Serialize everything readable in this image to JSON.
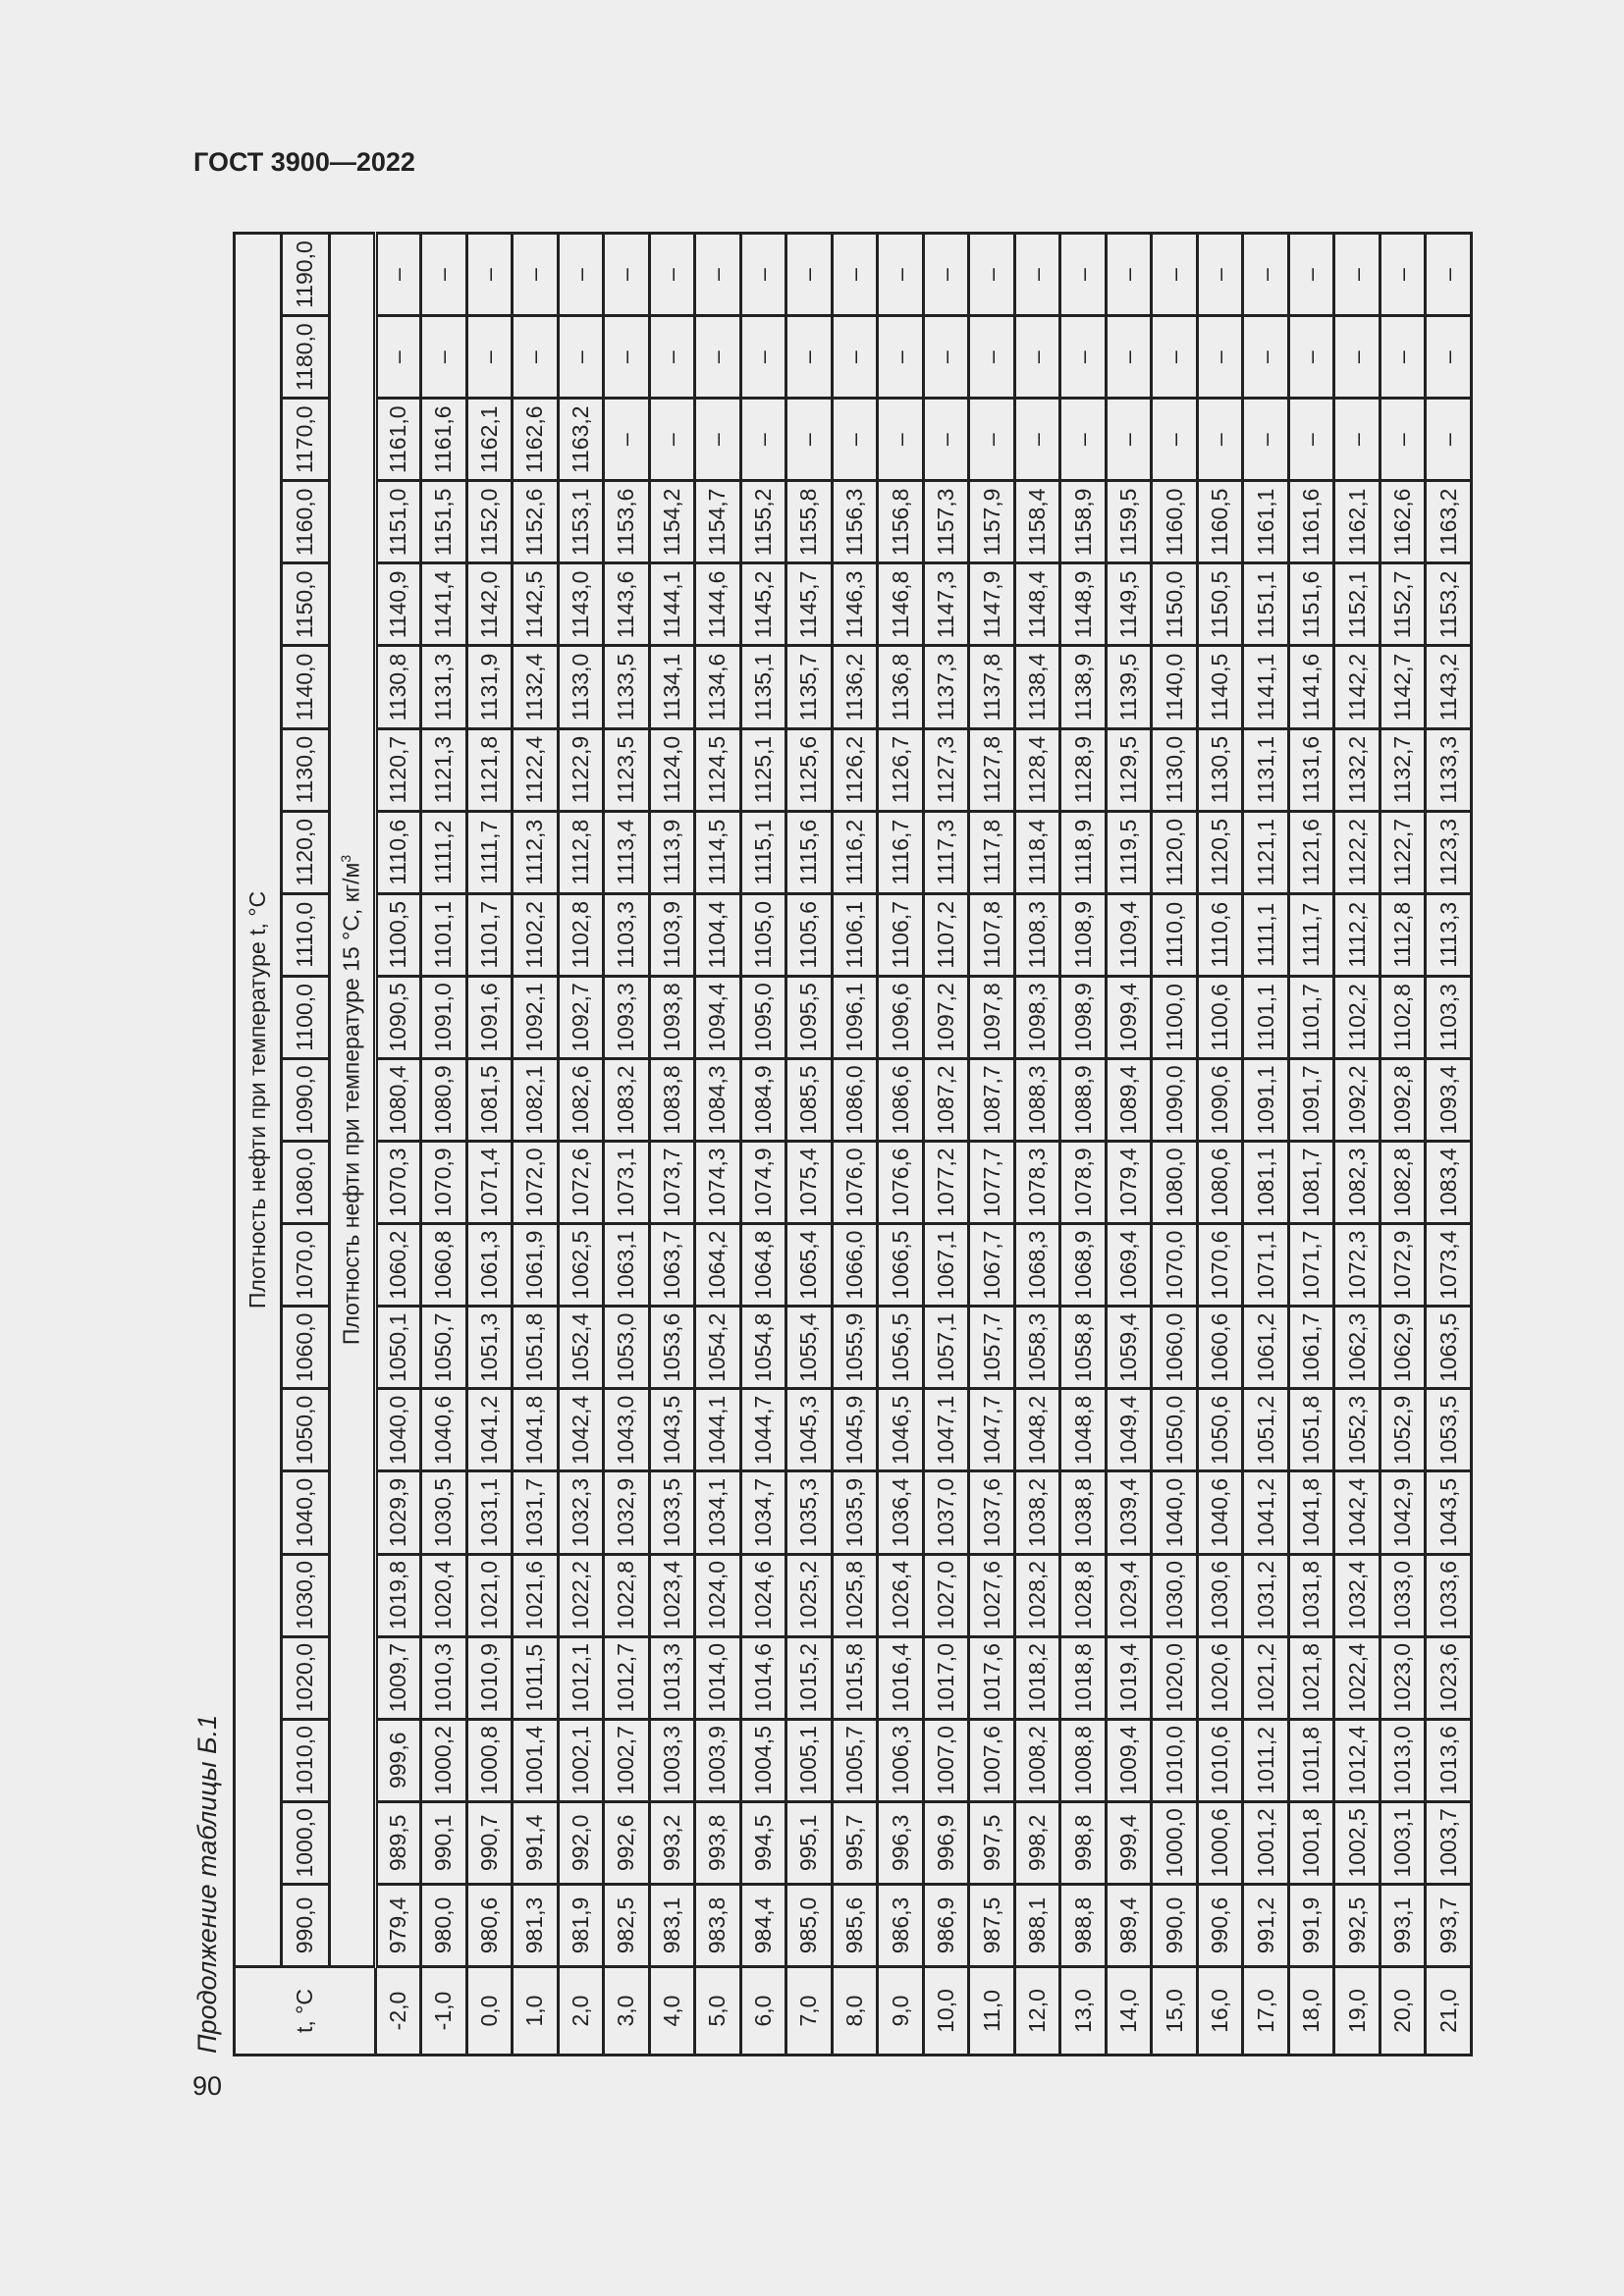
{
  "header": {
    "doc_title": "ГОСТ 3900—2022",
    "caption": "Продолжение таблицы Б.1",
    "page_number": "90"
  },
  "table": {
    "t_header": "t, °C",
    "group_header": "Плотность нефти при температуре t, °C",
    "sub_header": "Плотность нефти при температуре 15 °С, кг/м",
    "sub_header_sup": "3",
    "columns": [
      "990,0",
      "1000,0",
      "1010,0",
      "1020,0",
      "1030,0",
      "1040,0",
      "1050,0",
      "1060,0",
      "1070,0",
      "1080,0",
      "1090,0",
      "1100,0",
      "1110,0",
      "1120,0",
      "1130,0",
      "1140,0",
      "1150,0",
      "1160,0",
      "1170,0",
      "1180,0",
      "1190,0"
    ],
    "rows": [
      {
        "t": "-2,0",
        "v": [
          "979,4",
          "989,5",
          "999,6",
          "1009,7",
          "1019,8",
          "1029,9",
          "1040,0",
          "1050,1",
          "1060,2",
          "1070,3",
          "1080,4",
          "1090,5",
          "1100,5",
          "1110,6",
          "1120,7",
          "1130,8",
          "1140,9",
          "1151,0",
          "1161,0",
          "–",
          "–"
        ]
      },
      {
        "t": "-1,0",
        "v": [
          "980,0",
          "990,1",
          "1000,2",
          "1010,3",
          "1020,4",
          "1030,5",
          "1040,6",
          "1050,7",
          "1060,8",
          "1070,9",
          "1080,9",
          "1091,0",
          "1101,1",
          "1111,2",
          "1121,3",
          "1131,3",
          "1141,4",
          "1151,5",
          "1161,6",
          "–",
          "–"
        ]
      },
      {
        "t": "0,0",
        "v": [
          "980,6",
          "990,7",
          "1000,8",
          "1010,9",
          "1021,0",
          "1031,1",
          "1041,2",
          "1051,3",
          "1061,3",
          "1071,4",
          "1081,5",
          "1091,6",
          "1101,7",
          "1111,7",
          "1121,8",
          "1131,9",
          "1142,0",
          "1152,0",
          "1162,1",
          "–",
          "–"
        ]
      },
      {
        "t": "1,0",
        "v": [
          "981,3",
          "991,4",
          "1001,4",
          "1011,5",
          "1021,6",
          "1031,7",
          "1041,8",
          "1051,8",
          "1061,9",
          "1072,0",
          "1082,1",
          "1092,1",
          "1102,2",
          "1112,3",
          "1122,4",
          "1132,4",
          "1142,5",
          "1152,6",
          "1162,6",
          "–",
          "–"
        ]
      },
      {
        "t": "2,0",
        "v": [
          "981,9",
          "992,0",
          "1002,1",
          "1012,1",
          "1022,2",
          "1032,3",
          "1042,4",
          "1052,4",
          "1062,5",
          "1072,6",
          "1082,6",
          "1092,7",
          "1102,8",
          "1112,8",
          "1122,9",
          "1133,0",
          "1143,0",
          "1153,1",
          "1163,2",
          "–",
          "–"
        ]
      },
      {
        "t": "3,0",
        "v": [
          "982,5",
          "992,6",
          "1002,7",
          "1012,7",
          "1022,8",
          "1032,9",
          "1043,0",
          "1053,0",
          "1063,1",
          "1073,1",
          "1083,2",
          "1093,3",
          "1103,3",
          "1113,4",
          "1123,5",
          "1133,5",
          "1143,6",
          "1153,6",
          "–",
          "–",
          "–"
        ]
      },
      {
        "t": "4,0",
        "v": [
          "983,1",
          "993,2",
          "1003,3",
          "1013,3",
          "1023,4",
          "1033,5",
          "1043,5",
          "1053,6",
          "1063,7",
          "1073,7",
          "1083,8",
          "1093,8",
          "1103,9",
          "1113,9",
          "1124,0",
          "1134,1",
          "1144,1",
          "1154,2",
          "–",
          "–",
          "–"
        ]
      },
      {
        "t": "5,0",
        "v": [
          "983,8",
          "993,8",
          "1003,9",
          "1014,0",
          "1024,0",
          "1034,1",
          "1044,1",
          "1054,2",
          "1064,2",
          "1074,3",
          "1084,3",
          "1094,4",
          "1104,4",
          "1114,5",
          "1124,5",
          "1134,6",
          "1144,6",
          "1154,7",
          "–",
          "–",
          "–"
        ]
      },
      {
        "t": "6,0",
        "v": [
          "984,4",
          "994,5",
          "1004,5",
          "1014,6",
          "1024,6",
          "1034,7",
          "1044,7",
          "1054,8",
          "1064,8",
          "1074,9",
          "1084,9",
          "1095,0",
          "1105,0",
          "1115,1",
          "1125,1",
          "1135,1",
          "1145,2",
          "1155,2",
          "–",
          "–",
          "–"
        ]
      },
      {
        "t": "7,0",
        "v": [
          "985,0",
          "995,1",
          "1005,1",
          "1015,2",
          "1025,2",
          "1035,3",
          "1045,3",
          "1055,4",
          "1065,4",
          "1075,4",
          "1085,5",
          "1095,5",
          "1105,6",
          "1115,6",
          "1125,6",
          "1135,7",
          "1145,7",
          "1155,8",
          "–",
          "–",
          "–"
        ]
      },
      {
        "t": "8,0",
        "v": [
          "985,6",
          "995,7",
          "1005,7",
          "1015,8",
          "1025,8",
          "1035,9",
          "1045,9",
          "1055,9",
          "1066,0",
          "1076,0",
          "1086,0",
          "1096,1",
          "1106,1",
          "1116,2",
          "1126,2",
          "1136,2",
          "1146,3",
          "1156,3",
          "–",
          "–",
          "–"
        ]
      },
      {
        "t": "9,0",
        "v": [
          "986,3",
          "996,3",
          "1006,3",
          "1016,4",
          "1026,4",
          "1036,4",
          "1046,5",
          "1056,5",
          "1066,5",
          "1076,6",
          "1086,6",
          "1096,6",
          "1106,7",
          "1116,7",
          "1126,7",
          "1136,8",
          "1146,8",
          "1156,8",
          "–",
          "–",
          "–"
        ]
      },
      {
        "t": "10,0",
        "v": [
          "986,9",
          "996,9",
          "1007,0",
          "1017,0",
          "1027,0",
          "1037,0",
          "1047,1",
          "1057,1",
          "1067,1",
          "1077,2",
          "1087,2",
          "1097,2",
          "1107,2",
          "1117,3",
          "1127,3",
          "1137,3",
          "1147,3",
          "1157,3",
          "–",
          "–",
          "–"
        ]
      },
      {
        "t": "11,0",
        "v": [
          "987,5",
          "997,5",
          "1007,6",
          "1017,6",
          "1027,6",
          "1037,6",
          "1047,7",
          "1057,7",
          "1067,7",
          "1077,7",
          "1087,7",
          "1097,8",
          "1107,8",
          "1117,8",
          "1127,8",
          "1137,8",
          "1147,9",
          "1157,9",
          "–",
          "–",
          "–"
        ]
      },
      {
        "t": "12,0",
        "v": [
          "988,1",
          "998,2",
          "1008,2",
          "1018,2",
          "1028,2",
          "1038,2",
          "1048,2",
          "1058,3",
          "1068,3",
          "1078,3",
          "1088,3",
          "1098,3",
          "1108,3",
          "1118,4",
          "1128,4",
          "1138,4",
          "1148,4",
          "1158,4",
          "–",
          "–",
          "–"
        ]
      },
      {
        "t": "13,0",
        "v": [
          "988,8",
          "998,8",
          "1008,8",
          "1018,8",
          "1028,8",
          "1038,8",
          "1048,8",
          "1058,8",
          "1068,9",
          "1078,9",
          "1088,9",
          "1098,9",
          "1108,9",
          "1118,9",
          "1128,9",
          "1138,9",
          "1148,9",
          "1158,9",
          "–",
          "–",
          "–"
        ]
      },
      {
        "t": "14,0",
        "v": [
          "989,4",
          "999,4",
          "1009,4",
          "1019,4",
          "1029,4",
          "1039,4",
          "1049,4",
          "1059,4",
          "1069,4",
          "1079,4",
          "1089,4",
          "1099,4",
          "1109,4",
          "1119,5",
          "1129,5",
          "1139,5",
          "1149,5",
          "1159,5",
          "–",
          "–",
          "–"
        ]
      },
      {
        "t": "15,0",
        "v": [
          "990,0",
          "1000,0",
          "1010,0",
          "1020,0",
          "1030,0",
          "1040,0",
          "1050,0",
          "1060,0",
          "1070,0",
          "1080,0",
          "1090,0",
          "1100,0",
          "1110,0",
          "1120,0",
          "1130,0",
          "1140,0",
          "1150,0",
          "1160,0",
          "–",
          "–",
          "–"
        ]
      },
      {
        "t": "16,0",
        "v": [
          "990,6",
          "1000,6",
          "1010,6",
          "1020,6",
          "1030,6",
          "1040,6",
          "1050,6",
          "1060,6",
          "1070,6",
          "1080,6",
          "1090,6",
          "1100,6",
          "1110,6",
          "1120,5",
          "1130,5",
          "1140,5",
          "1150,5",
          "1160,5",
          "–",
          "–",
          "–"
        ]
      },
      {
        "t": "17,0",
        "v": [
          "991,2",
          "1001,2",
          "1011,2",
          "1021,2",
          "1031,2",
          "1041,2",
          "1051,2",
          "1061,2",
          "1071,1",
          "1081,1",
          "1091,1",
          "1101,1",
          "1111,1",
          "1121,1",
          "1131,1",
          "1141,1",
          "1151,1",
          "1161,1",
          "–",
          "–",
          "–"
        ]
      },
      {
        "t": "18,0",
        "v": [
          "991,9",
          "1001,8",
          "1011,8",
          "1021,8",
          "1031,8",
          "1041,8",
          "1051,8",
          "1061,7",
          "1071,7",
          "1081,7",
          "1091,7",
          "1101,7",
          "1111,7",
          "1121,6",
          "1131,6",
          "1141,6",
          "1151,6",
          "1161,6",
          "–",
          "–",
          "–"
        ]
      },
      {
        "t": "19,0",
        "v": [
          "992,5",
          "1002,5",
          "1012,4",
          "1022,4",
          "1032,4",
          "1042,4",
          "1052,3",
          "1062,3",
          "1072,3",
          "1082,3",
          "1092,2",
          "1102,2",
          "1112,2",
          "1122,2",
          "1132,2",
          "1142,2",
          "1152,1",
          "1162,1",
          "–",
          "–",
          "–"
        ]
      },
      {
        "t": "20,0",
        "v": [
          "993,1",
          "1003,1",
          "1013,0",
          "1023,0",
          "1033,0",
          "1042,9",
          "1052,9",
          "1062,9",
          "1072,9",
          "1082,8",
          "1092,8",
          "1102,8",
          "1112,8",
          "1122,7",
          "1132,7",
          "1142,7",
          "1152,7",
          "1162,6",
          "–",
          "–",
          "–"
        ]
      },
      {
        "t": "21,0",
        "v": [
          "993,7",
          "1003,7",
          "1013,6",
          "1023,6",
          "1033,6",
          "1043,5",
          "1053,5",
          "1063,5",
          "1073,4",
          "1083,4",
          "1093,4",
          "1103,3",
          "1113,3",
          "1123,3",
          "1133,3",
          "1143,2",
          "1153,2",
          "1163,2",
          "–",
          "–",
          "–"
        ]
      }
    ]
  }
}
